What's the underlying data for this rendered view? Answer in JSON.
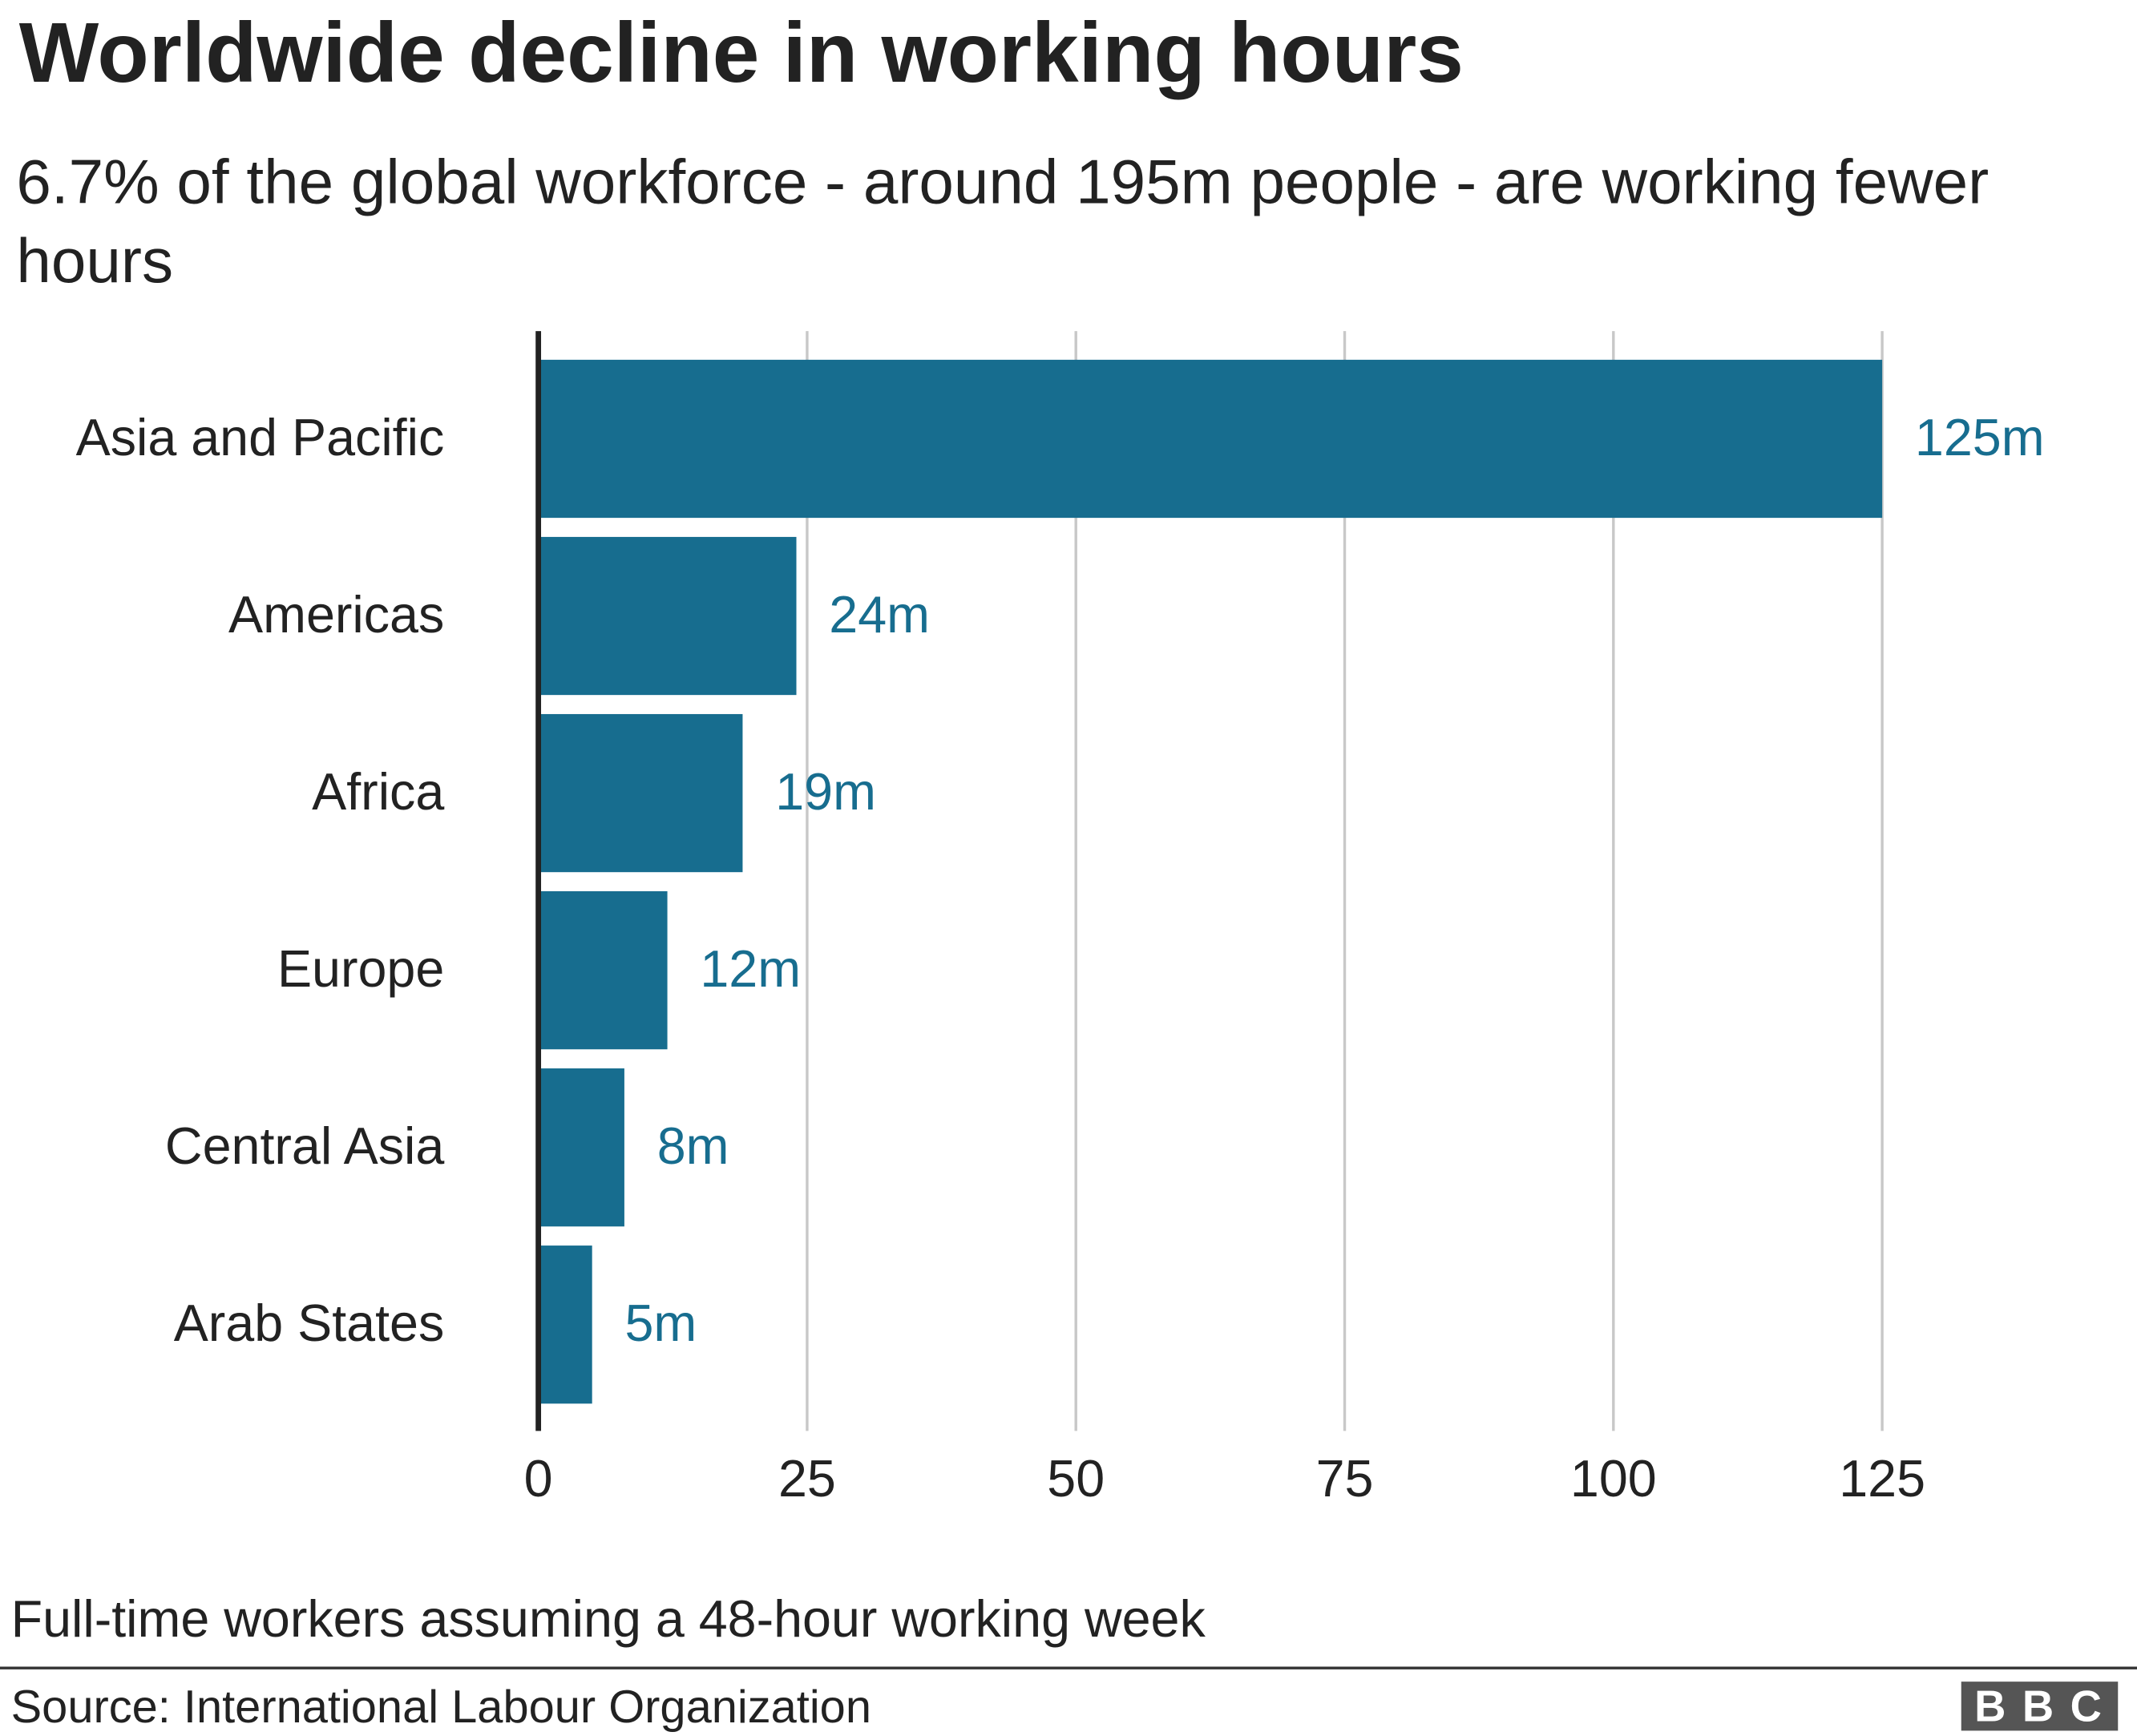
{
  "chart_data": {
    "type": "bar",
    "orientation": "horizontal",
    "title": "Worldwide decline in working hours",
    "subtitle": "6.7% of the global workforce - around 195m people - are working fewer hours",
    "categories": [
      "Asia and Pacific",
      "Americas",
      "Africa",
      "Europe",
      "Central Asia",
      "Arab States"
    ],
    "values": [
      125,
      24,
      19,
      12,
      8,
      5
    ],
    "value_labels": [
      "125m",
      "24m",
      "19m",
      "12m",
      "8m",
      "5m"
    ],
    "color": "#176d8f",
    "xlim": [
      0,
      125
    ],
    "xticks": [
      0,
      25,
      50,
      75,
      100,
      125
    ],
    "grid": true,
    "note": "Full-time workers assuming a 48-hour working week",
    "source": "Source: International Labour Organization",
    "logo": "BBC"
  }
}
